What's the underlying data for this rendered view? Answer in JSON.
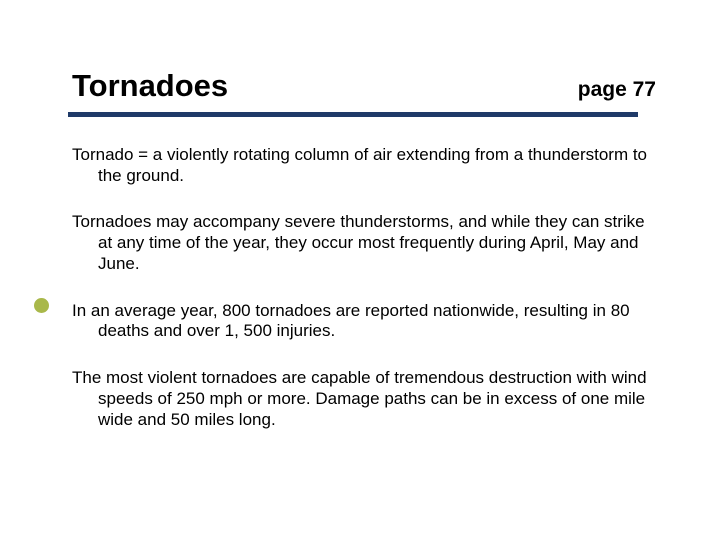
{
  "header": {
    "title": "Tornadoes",
    "page_label": "page 77"
  },
  "paragraphs": [
    "Tornado = a violently rotating column of air extending from a thunderstorm to the ground.",
    "Tornadoes may accompany severe thunderstorms, and while they can strike at any time of the year, they occur most frequently during April, May and June.",
    "In an average year, 800 tornadoes are reported nationwide, resulting in 80 deaths and over 1, 500 injuries.",
    "The most violent tornadoes are capable of tremendous destruction with wind speeds of 250 mph or more.  Damage paths can be in excess of one mile wide and 50 miles long."
  ],
  "colors": {
    "underline": "#1f3a68",
    "accent_dot": "#a9b84a",
    "text": "#000000",
    "background": "#ffffff"
  },
  "typography": {
    "title_fontsize": 31,
    "page_fontsize": 21,
    "body_fontsize": 17,
    "font_family": "Arial"
  }
}
